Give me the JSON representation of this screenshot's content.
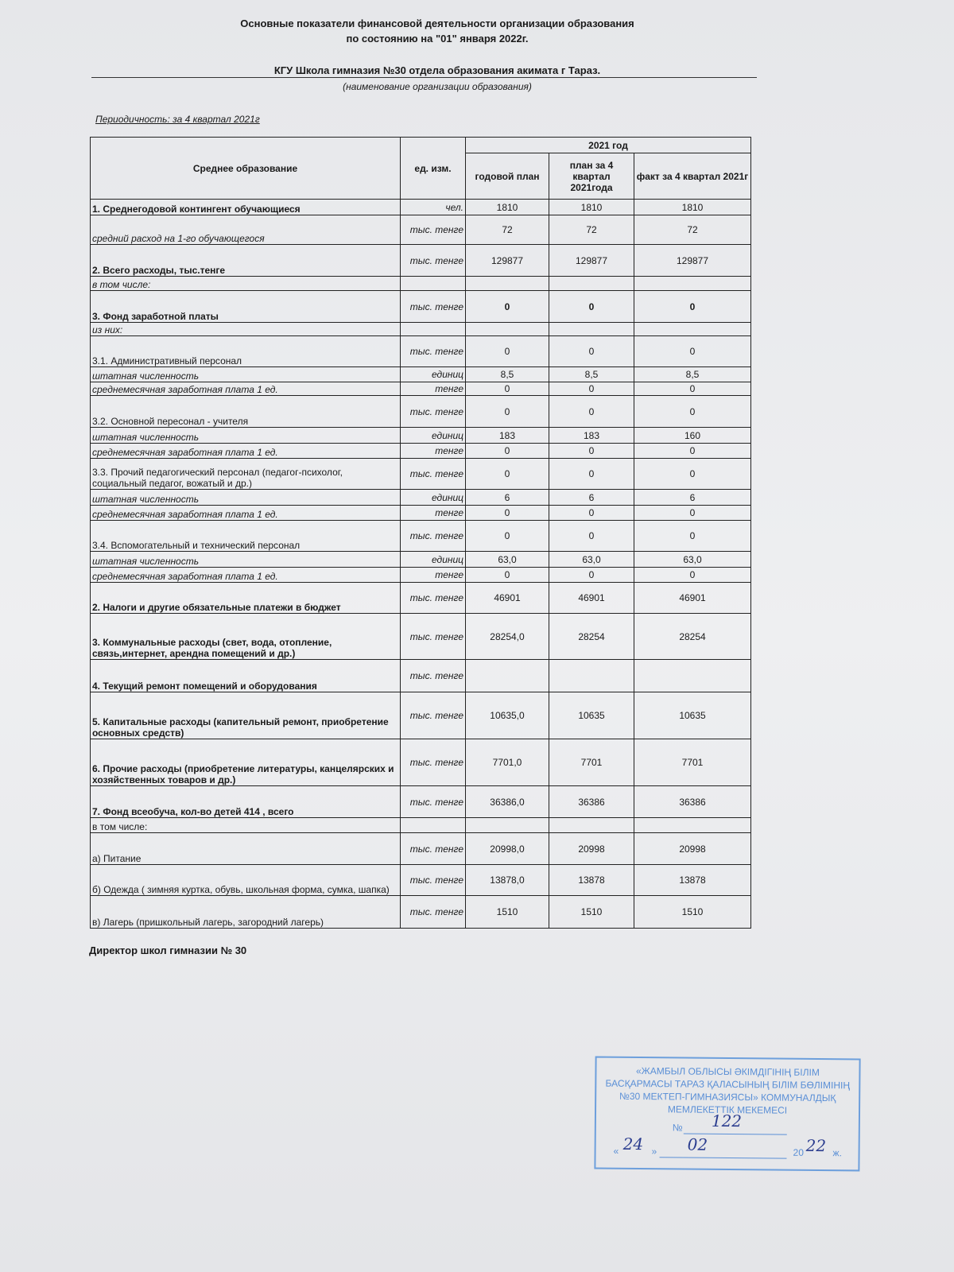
{
  "header": {
    "title_line1": "Основные показатели финансовой деятельности организации образования",
    "title_line2": "по состоянию на \"01\" января   2022г.",
    "organization": "КГУ Школа гимназия №30 отдела образования акимата г Тараз.",
    "organization_note": "(наименование организации образования)",
    "periodicity": "Периодичность:  за 4 квартал 2021г"
  },
  "table": {
    "col_name": "Среднее образование",
    "col_unit": "ед. изм.",
    "group_header": "2021 год",
    "col_annual": "годовой план",
    "col_plan_q4": "план за  4 квартал 2021года",
    "col_fact_q4": "факт за 4 квартал 2021г",
    "rows": [
      {
        "name": "1. Среднегодовой контингент обучающиеся",
        "unit": "чел.",
        "annual": "1810",
        "plan": "1810",
        "fact": "1810"
      },
      {
        "name": "средний расход на 1-го обучающегося",
        "unit": "тыс. тенге",
        "annual": "72",
        "plan": "72",
        "fact": "72"
      },
      {
        "name": "2. Всего расходы, тыс.тенге",
        "unit": "тыс. тенге",
        "annual": "129877",
        "plan": "129877",
        "fact": "129877"
      },
      {
        "name": "в том числе:",
        "unit": "",
        "annual": "",
        "plan": "",
        "fact": ""
      },
      {
        "name": "3. Фонд заработной платы",
        "unit": "тыс. тенге",
        "annual": "0",
        "plan": "0",
        "fact": "0"
      },
      {
        "name": "из них:",
        "unit": "",
        "annual": "",
        "plan": "",
        "fact": ""
      },
      {
        "name": "3.1. Административный персонал",
        "unit": "тыс. тенге",
        "annual": "0",
        "plan": "0",
        "fact": "0"
      },
      {
        "name": "штатная численность",
        "unit": "единиц",
        "annual": "8,5",
        "plan": "8,5",
        "fact": "8,5"
      },
      {
        "name": "среднемесячная заработная плата 1 ед.",
        "unit": "тенге",
        "annual": "0",
        "plan": "0",
        "fact": "0"
      },
      {
        "name": "3.2. Основной пересонал - учителя",
        "unit": "тыс. тенге",
        "annual": "0",
        "plan": "0",
        "fact": "0"
      },
      {
        "name": "штатная численность",
        "unit": "единиц",
        "annual": "183",
        "plan": "183",
        "fact": "160"
      },
      {
        "name": "среднемесячная заработная плата 1 ед.",
        "unit": "тенге",
        "annual": "0",
        "plan": "0",
        "fact": "0"
      },
      {
        "name": "3.3. Прочий педагогический персонал (педагог-психолог, социальный педагог, вожатый и др.)",
        "unit": "тыс. тенге",
        "annual": "0",
        "plan": "0",
        "fact": "0"
      },
      {
        "name": "штатная численность",
        "unit": "единиц",
        "annual": "6",
        "plan": "6",
        "fact": "6"
      },
      {
        "name": "среднемесячная заработная плата 1 ед.",
        "unit": "тенге",
        "annual": "0",
        "plan": "0",
        "fact": "0"
      },
      {
        "name": "3.4. Вспомогательный и технический персонал",
        "unit": "тыс. тенге",
        "annual": "0",
        "plan": "0",
        "fact": "0"
      },
      {
        "name": "штатная численность",
        "unit": "единиц",
        "annual": "63,0",
        "plan": "63,0",
        "fact": "63,0"
      },
      {
        "name": "среднемесячная заработная плата 1 ед.",
        "unit": "тенге",
        "annual": "0",
        "plan": "0",
        "fact": "0"
      },
      {
        "name": "2. Налоги и другие обязательные платежи в бюджет",
        "unit": "тыс. тенге",
        "annual": "46901",
        "plan": "46901",
        "fact": "46901"
      },
      {
        "name": "3. Коммунальные расходы (свет, вода, отопление, связь,интернет, арендна помещений и др.)",
        "unit": "тыс. тенге",
        "annual": "28254,0",
        "plan": "28254",
        "fact": "28254"
      },
      {
        "name": "4. Текущий ремонт помещений и оборудования",
        "unit": "тыс. тенге",
        "annual": "",
        "plan": "",
        "fact": ""
      },
      {
        "name": "5. Капитальные расходы (капительный ремонт, приобретение основных средств)",
        "unit": "тыс. тенге",
        "annual": "10635,0",
        "plan": "10635",
        "fact": "10635"
      },
      {
        "name": "6. Прочие расходы (приобретение литературы, канцелярских и хозяйственных товаров и др.)",
        "unit": "тыс. тенге",
        "annual": "7701,0",
        "plan": "7701",
        "fact": "7701"
      },
      {
        "name": "7. Фонд всеобуча, кол-во детей 414 , всего",
        "unit": "тыс. тенге",
        "annual": "36386,0",
        "plan": "36386",
        "fact": "36386"
      },
      {
        "name": "в том числе:",
        "unit": "",
        "annual": "",
        "plan": "",
        "fact": ""
      },
      {
        "name": "а) Питание",
        "unit": "тыс. тенге",
        "annual": "20998,0",
        "plan": "20998",
        "fact": "20998"
      },
      {
        "name": "б) Одежда ( зимняя куртка, обувь, школьная форма, сумка, шапка)",
        "unit": "тыс. тенге",
        "annual": "13878,0",
        "plan": "13878",
        "fact": "13878"
      },
      {
        "name": "в) Лагерь (пришкольный лагерь, загородний лагерь)",
        "unit": "тыс. тенге",
        "annual": "1510",
        "plan": "1510",
        "fact": "1510"
      }
    ]
  },
  "footer": {
    "director": "Директор школ гимназии № 30"
  },
  "stamp": {
    "lines": [
      "«ЖАМБЫЛ ОБЛЫСЫ ӘКІМДІГІНІҢ БІЛІМ",
      "БАСҚАРМАСЫ ТАРАЗ ҚАЛАСЫНЫҢ БІЛІМ БӨЛІМІНІҢ",
      "№30 МЕКТЕП-ГИМНАЗИЯСЫ» КОММУНАЛДЫҚ",
      "МЕМЛЕКЕТТІК МЕКЕМЕСІ"
    ],
    "number_label": "№",
    "number": "122",
    "day": "24",
    "month": "02",
    "year_prefix": "20",
    "year_suffix": "22",
    "year_unit": "ж.",
    "color": "#5a8fd6"
  }
}
